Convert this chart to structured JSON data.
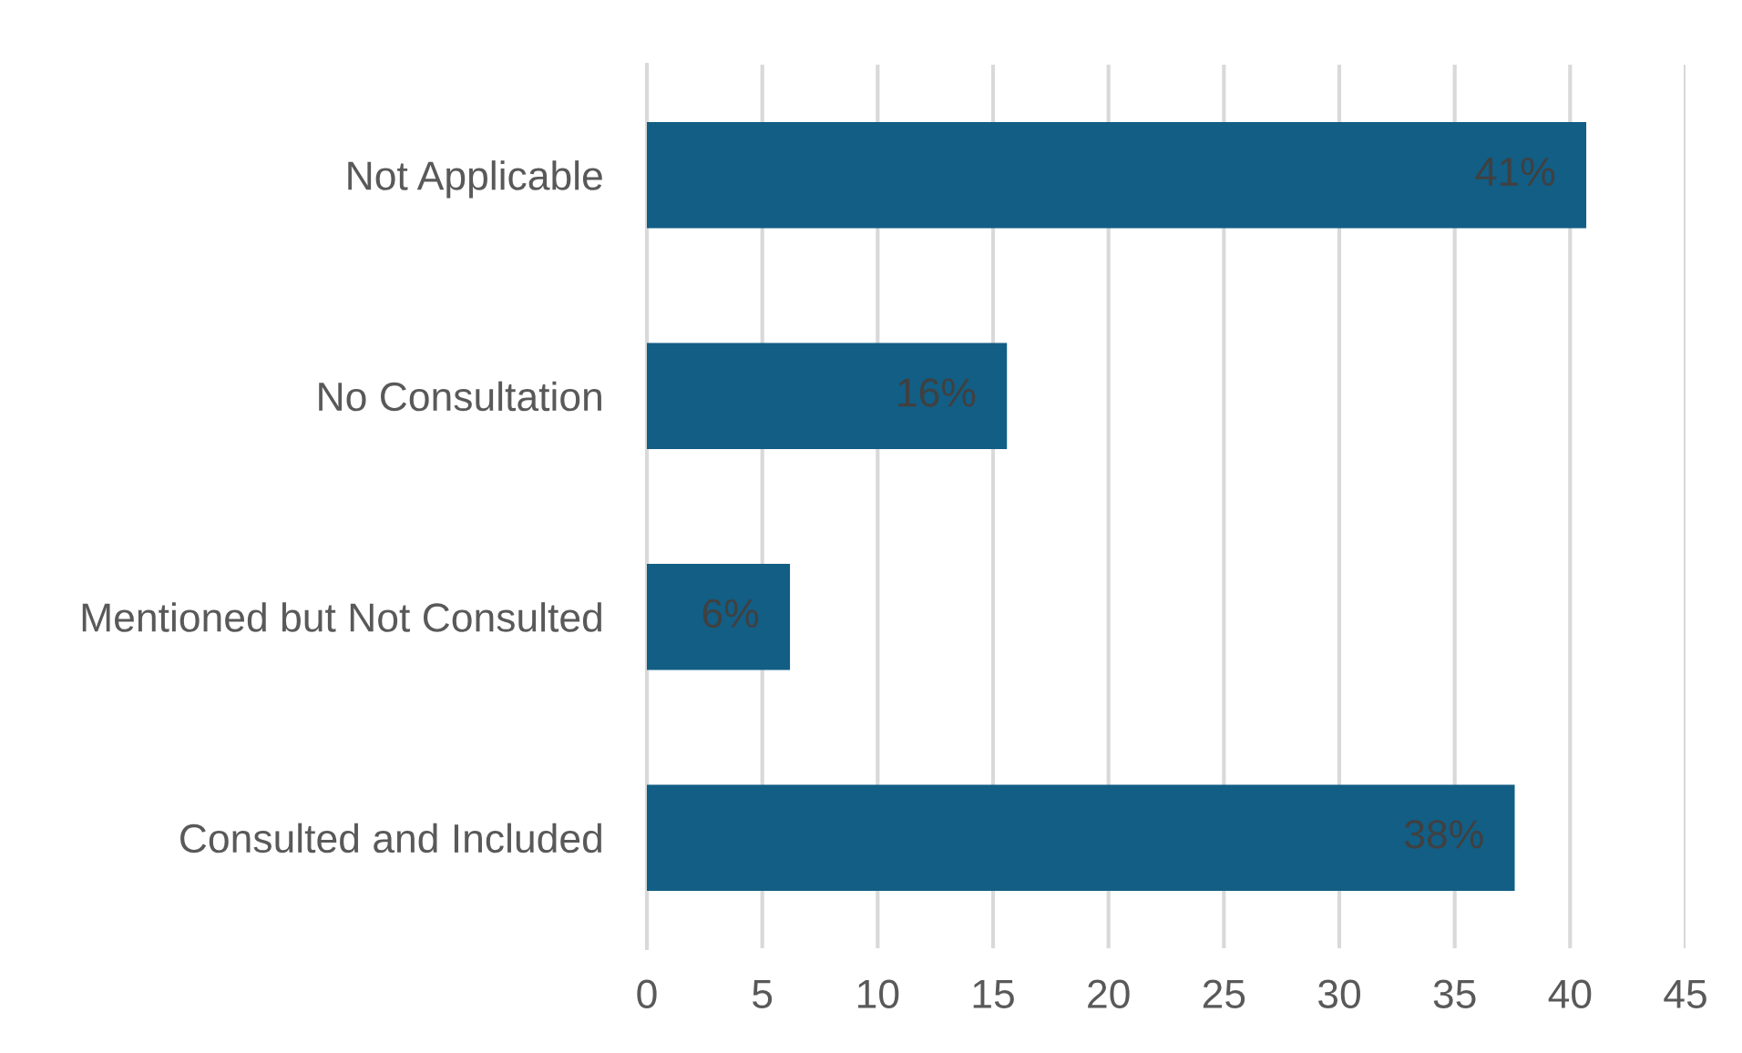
{
  "chart_data": {
    "type": "bar",
    "orientation": "horizontal",
    "categories": [
      "Not Applicable",
      "No Consultation",
      "Mentioned but Not Consulted",
      "Consulted and Included"
    ],
    "values": [
      40.7,
      15.6,
      6.2,
      37.6
    ],
    "color": "#125e85",
    "value_labels": [
      "41%",
      "16%",
      "6%",
      "38%"
    ],
    "xlim": [
      0,
      45
    ],
    "xticks": [
      0,
      5,
      10,
      15,
      20,
      25,
      30,
      35,
      40,
      45
    ],
    "grid": "x"
  }
}
